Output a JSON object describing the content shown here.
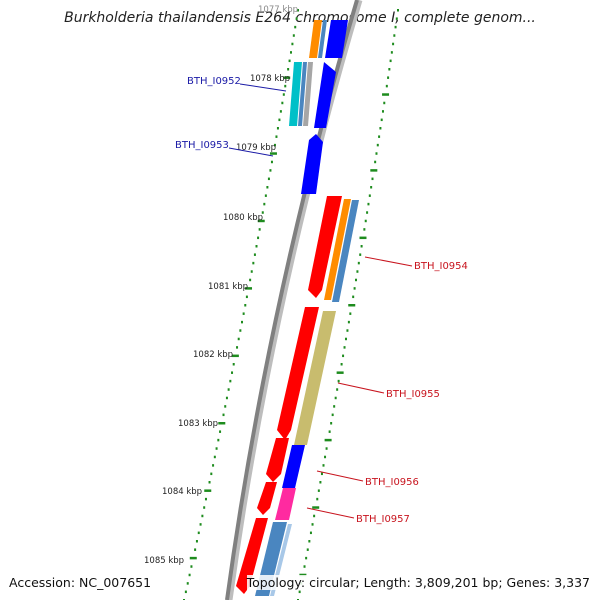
{
  "title": "Burkholderia thailandensis E264 chromosome I, complete genom...",
  "accession": "Accession: NC_007651",
  "topology": "Topology: circular; Length: 3,809,201 bp; Genes: 3,337",
  "colors": {
    "backbone": "#808080",
    "tick": "#1e8c1e",
    "red": "#ff0000",
    "orange": "#ff8c00",
    "steelblue": "#4a86c0",
    "blue": "#0000ff",
    "cyan": "#00c0c8",
    "khaki": "#c8bc6e",
    "magenta": "#ff2aa0",
    "label_blue": "#1a1aa6",
    "label_red": "#c8141e"
  },
  "kbp_labels": {
    "k1077": "1077 kbp",
    "k1078": "1078 kbp",
    "k1079": "1079 kbp",
    "k1080": "1080 kbp",
    "k1081": "1081 kbp",
    "k1082": "1082 kbp",
    "k1083": "1083 kbp",
    "k1084": "1084 kbp",
    "k1085": "1085 kbp"
  },
  "genes": {
    "g0952": "BTH_I0952",
    "g0953": "BTH_I0953",
    "g0954": "BTH_I0954",
    "g0955": "BTH_I0955",
    "g0956": "BTH_I0956",
    "g0957": "BTH_I0957"
  }
}
